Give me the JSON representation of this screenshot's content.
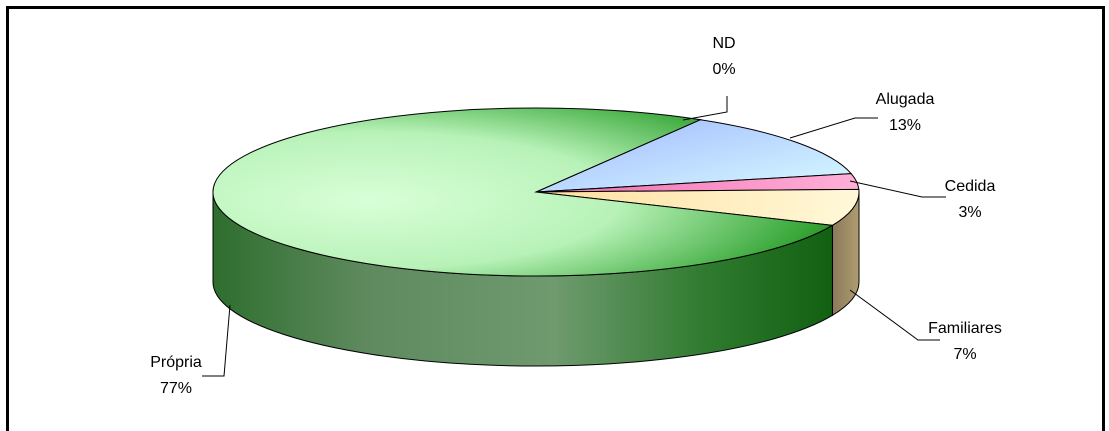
{
  "chart_data": {
    "type": "pie",
    "title": "",
    "style": "3d-exploded-none",
    "slices": [
      {
        "label": "ND",
        "value": 0,
        "pct": "0%",
        "color": "#b9a0f0"
      },
      {
        "label": "Alugada",
        "value": 13,
        "pct": "13%",
        "color": "#c8e8ff"
      },
      {
        "label": "Cedida",
        "value": 3,
        "pct": "3%",
        "color": "#f08cc8"
      },
      {
        "label": "Familiares",
        "value": 7,
        "pct": "7%",
        "color": "#fff2b8"
      },
      {
        "label": "Própria",
        "value": 77,
        "pct": "77%",
        "color": "#a8f0a8"
      }
    ]
  }
}
